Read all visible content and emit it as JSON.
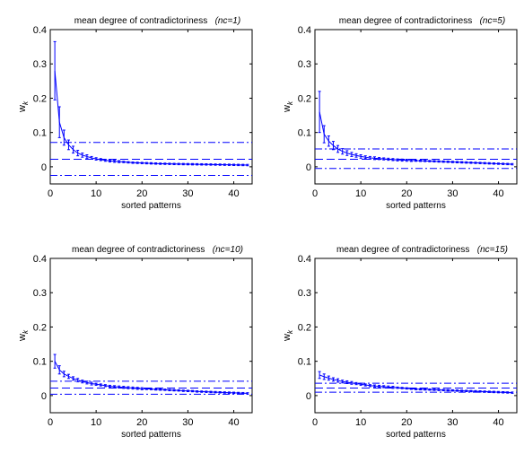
{
  "figure": {
    "background": "#ffffff",
    "series_color": "#0000ff",
    "axis_color": "#000000"
  },
  "chart_data": [
    {
      "type": "line",
      "title": "mean degree of contradictoriness",
      "title_italic": "(nc=1)",
      "xlabel": "sorted patterns",
      "ylabel": "w",
      "ylabel_subscript": "k",
      "xlim": [
        0,
        44
      ],
      "ylim": [
        -0.05,
        0.4
      ],
      "xticks": [
        0,
        10,
        20,
        30,
        40
      ],
      "yticks": [
        0,
        0.1,
        0.2,
        0.3,
        0.4
      ],
      "ytick_labels": [
        "0",
        "0.1",
        "0.2",
        "0.3",
        "0.4"
      ],
      "grid": false,
      "series": [
        {
          "x": [
            1,
            2,
            3,
            4,
            5,
            6,
            7,
            8,
            9,
            10,
            11,
            12,
            13,
            14,
            15,
            16,
            17,
            18,
            19,
            20,
            21,
            22,
            23,
            24,
            25,
            26,
            27,
            28,
            29,
            30,
            31,
            32,
            33,
            34,
            35,
            36,
            37,
            38,
            39,
            40,
            41,
            42,
            43
          ],
          "y": [
            0.28,
            0.13,
            0.085,
            0.064,
            0.05,
            0.04,
            0.034,
            0.03,
            0.026,
            0.023,
            0.021,
            0.019,
            0.017,
            0.016,
            0.015,
            0.014,
            0.013,
            0.012,
            0.0115,
            0.011,
            0.0105,
            0.01,
            0.0095,
            0.009,
            0.0088,
            0.0085,
            0.0082,
            0.008,
            0.0078,
            0.0076,
            0.0074,
            0.0072,
            0.007,
            0.0068,
            0.0066,
            0.0064,
            0.0062,
            0.006,
            0.0058,
            0.0056,
            0.0054,
            0.0052,
            0.005
          ],
          "err": [
            0.085,
            0.045,
            0.022,
            0.014,
            0.01,
            0.008,
            0.006,
            0.005,
            0.004,
            0.0035,
            0.003,
            0.003,
            0.003,
            0.003,
            0.003,
            0.002,
            0.002,
            0.002,
            0.002,
            0.002,
            0.002,
            0.002,
            0.002,
            0.002,
            0.002,
            0.002,
            0.002,
            0.002,
            0.002,
            0.002,
            0.002,
            0.002,
            0.002,
            0.002,
            0.002,
            0.002,
            0.002,
            0.002,
            0.002,
            0.002,
            0.002,
            0.002,
            0.002
          ]
        }
      ],
      "hlines": [
        {
          "y": 0.071,
          "style": "dash-dot"
        },
        {
          "y": 0.022,
          "style": "dashed"
        },
        {
          "y": -0.025,
          "style": "dash-dot"
        }
      ]
    },
    {
      "type": "line",
      "title": "mean degree of contradictoriness",
      "title_italic": "(nc=5)",
      "xlabel": "sorted patterns",
      "ylabel": "w",
      "ylabel_subscript": "k",
      "xlim": [
        0,
        44
      ],
      "ylim": [
        -0.05,
        0.4
      ],
      "xticks": [
        0,
        10,
        20,
        30,
        40
      ],
      "yticks": [
        0,
        0.1,
        0.2,
        0.3,
        0.4
      ],
      "ytick_labels": [
        "0",
        "0.1",
        "0.2",
        "0.3",
        "0.4"
      ],
      "grid": false,
      "series": [
        {
          "x": [
            1,
            2,
            3,
            4,
            5,
            6,
            7,
            8,
            9,
            10,
            11,
            12,
            13,
            14,
            15,
            16,
            17,
            18,
            19,
            20,
            21,
            22,
            23,
            24,
            25,
            26,
            27,
            28,
            29,
            30,
            31,
            32,
            33,
            34,
            35,
            36,
            37,
            38,
            39,
            40,
            41,
            42,
            43
          ],
          "y": [
            0.16,
            0.095,
            0.075,
            0.062,
            0.052,
            0.045,
            0.04,
            0.036,
            0.033,
            0.03,
            0.028,
            0.026,
            0.025,
            0.024,
            0.023,
            0.022,
            0.021,
            0.02,
            0.0195,
            0.019,
            0.0185,
            0.018,
            0.0175,
            0.017,
            0.0165,
            0.016,
            0.0155,
            0.015,
            0.0145,
            0.014,
            0.0135,
            0.013,
            0.0125,
            0.012,
            0.0115,
            0.011,
            0.0105,
            0.01,
            0.0095,
            0.009,
            0.0085,
            0.008,
            0.0075
          ],
          "err": [
            0.06,
            0.025,
            0.015,
            0.012,
            0.01,
            0.008,
            0.007,
            0.006,
            0.005,
            0.005,
            0.004,
            0.004,
            0.004,
            0.003,
            0.003,
            0.003,
            0.003,
            0.003,
            0.003,
            0.003,
            0.003,
            0.002,
            0.002,
            0.002,
            0.002,
            0.002,
            0.002,
            0.002,
            0.002,
            0.002,
            0.002,
            0.002,
            0.002,
            0.002,
            0.002,
            0.002,
            0.002,
            0.002,
            0.002,
            0.002,
            0.002,
            0.002,
            0.002
          ]
        }
      ],
      "hlines": [
        {
          "y": 0.052,
          "style": "dash-dot"
        },
        {
          "y": 0.022,
          "style": "dashed"
        },
        {
          "y": -0.005,
          "style": "dash-dot"
        }
      ]
    },
    {
      "type": "line",
      "title": "mean degree of contradictoriness",
      "title_italic": "(nc=10)",
      "xlabel": "sorted patterns",
      "ylabel": "w",
      "ylabel_subscript": "k",
      "xlim": [
        0,
        44
      ],
      "ylim": [
        -0.05,
        0.4
      ],
      "xticks": [
        0,
        10,
        20,
        30,
        40
      ],
      "yticks": [
        0,
        0.1,
        0.2,
        0.3,
        0.4
      ],
      "ytick_labels": [
        "0",
        "0.1",
        "0.2",
        "0.3",
        "0.4"
      ],
      "grid": false,
      "series": [
        {
          "x": [
            1,
            2,
            3,
            4,
            5,
            6,
            7,
            8,
            9,
            10,
            11,
            12,
            13,
            14,
            15,
            16,
            17,
            18,
            19,
            20,
            21,
            22,
            23,
            24,
            25,
            26,
            27,
            28,
            29,
            30,
            31,
            32,
            33,
            34,
            35,
            36,
            37,
            38,
            39,
            40,
            41,
            42,
            43
          ],
          "y": [
            0.1,
            0.075,
            0.063,
            0.056,
            0.05,
            0.045,
            0.041,
            0.038,
            0.035,
            0.033,
            0.031,
            0.029,
            0.027,
            0.026,
            0.025,
            0.024,
            0.023,
            0.022,
            0.021,
            0.02,
            0.0195,
            0.019,
            0.018,
            0.0175,
            0.017,
            0.016,
            0.0155,
            0.015,
            0.014,
            0.0135,
            0.013,
            0.012,
            0.0115,
            0.011,
            0.0105,
            0.01,
            0.0095,
            0.009,
            0.0085,
            0.008,
            0.0075,
            0.007,
            0.0065
          ],
          "err": [
            0.02,
            0.012,
            0.008,
            0.006,
            0.005,
            0.005,
            0.004,
            0.004,
            0.004,
            0.003,
            0.003,
            0.003,
            0.003,
            0.003,
            0.003,
            0.003,
            0.003,
            0.003,
            0.003,
            0.003,
            0.002,
            0.002,
            0.002,
            0.002,
            0.002,
            0.002,
            0.002,
            0.002,
            0.002,
            0.002,
            0.002,
            0.002,
            0.002,
            0.002,
            0.002,
            0.002,
            0.002,
            0.002,
            0.002,
            0.002,
            0.002,
            0.002,
            0.002
          ]
        }
      ],
      "hlines": [
        {
          "y": 0.042,
          "style": "dash-dot"
        },
        {
          "y": 0.022,
          "style": "dashed"
        },
        {
          "y": 0.004,
          "style": "dash-dot"
        }
      ]
    },
    {
      "type": "line",
      "title": "mean degree of contradictoriness",
      "title_italic": "(nc=15)",
      "xlabel": "sorted patterns",
      "ylabel": "w",
      "ylabel_subscript": "k",
      "xlim": [
        0,
        44
      ],
      "ylim": [
        -0.05,
        0.4
      ],
      "xticks": [
        0,
        10,
        20,
        30,
        40
      ],
      "yticks": [
        0,
        0.1,
        0.2,
        0.3,
        0.4
      ],
      "ytick_labels": [
        "0",
        "0.1",
        "0.2",
        "0.3",
        "0.4"
      ],
      "grid": false,
      "series": [
        {
          "x": [
            1,
            2,
            3,
            4,
            5,
            6,
            7,
            8,
            9,
            10,
            11,
            12,
            13,
            14,
            15,
            16,
            17,
            18,
            19,
            20,
            21,
            22,
            23,
            24,
            25,
            26,
            27,
            28,
            29,
            30,
            31,
            32,
            33,
            34,
            35,
            36,
            37,
            38,
            39,
            40,
            41,
            42,
            43
          ],
          "y": [
            0.06,
            0.055,
            0.051,
            0.047,
            0.044,
            0.041,
            0.039,
            0.037,
            0.035,
            0.033,
            0.031,
            0.029,
            0.028,
            0.027,
            0.026,
            0.025,
            0.024,
            0.023,
            0.022,
            0.021,
            0.02,
            0.019,
            0.0185,
            0.018,
            0.0175,
            0.017,
            0.0165,
            0.016,
            0.0155,
            0.015,
            0.0145,
            0.014,
            0.0135,
            0.013,
            0.0125,
            0.012,
            0.0115,
            0.011,
            0.0105,
            0.01,
            0.0095,
            0.009,
            0.0085
          ],
          "err": [
            0.01,
            0.008,
            0.006,
            0.005,
            0.005,
            0.004,
            0.004,
            0.004,
            0.003,
            0.003,
            0.003,
            0.003,
            0.003,
            0.003,
            0.003,
            0.003,
            0.003,
            0.002,
            0.002,
            0.002,
            0.002,
            0.002,
            0.002,
            0.002,
            0.002,
            0.002,
            0.002,
            0.002,
            0.002,
            0.002,
            0.002,
            0.002,
            0.002,
            0.002,
            0.002,
            0.002,
            0.002,
            0.002,
            0.002,
            0.002,
            0.002,
            0.002,
            0.002
          ]
        }
      ],
      "hlines": [
        {
          "y": 0.036,
          "style": "dash-dot"
        },
        {
          "y": 0.022,
          "style": "dashed"
        },
        {
          "y": 0.01,
          "style": "dash-dot"
        }
      ]
    }
  ]
}
